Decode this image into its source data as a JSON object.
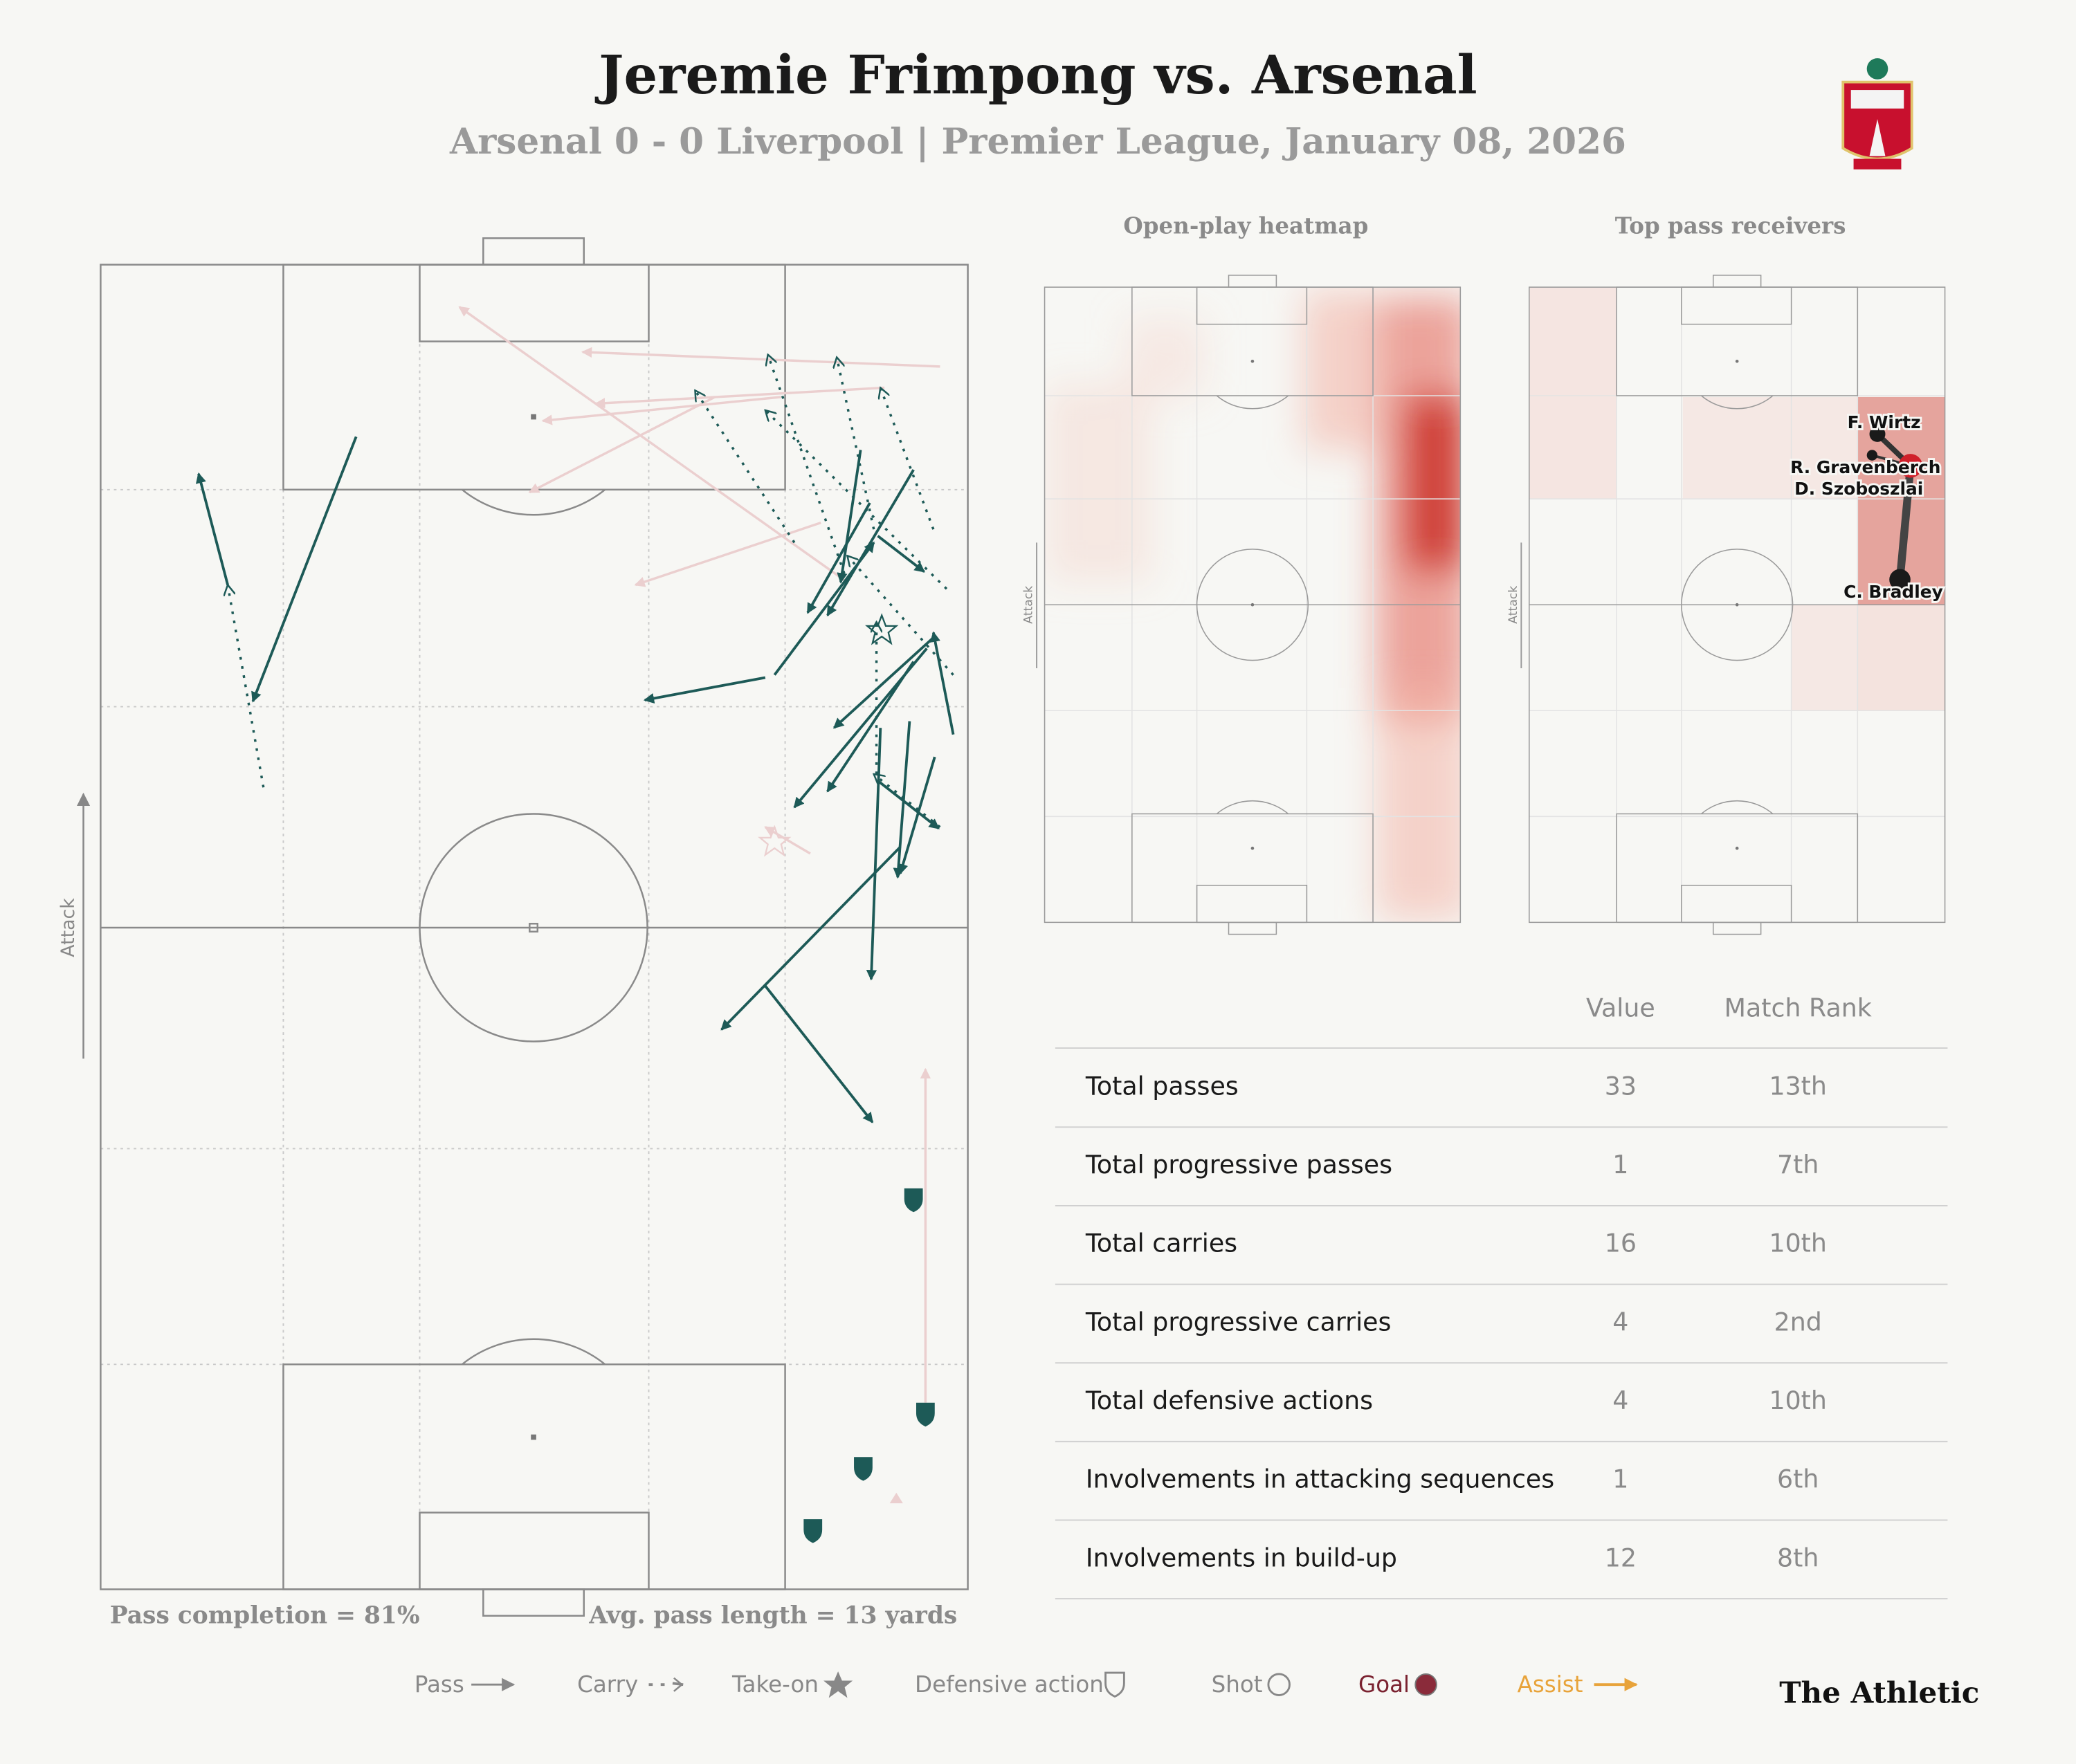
{
  "header": {
    "title": "Jeremie Frimpong vs. Arsenal",
    "subtitle": "Arsenal 0 - 0 Liverpool | Premier League, January 08, 2026"
  },
  "pitch": {
    "attack_label": "Attack",
    "pass_completion": "Pass completion = 81%",
    "avg_pass_length": "Avg. pass length = 13 yards"
  },
  "heatmap": {
    "title": "Open-play heatmap",
    "attack_label": "Attack"
  },
  "receivers": {
    "title": "Top pass receivers",
    "attack_label": "Attack",
    "players": [
      "F. Wirtz",
      "R. Gravenberch",
      "D. Szoboszlai",
      "C. Bradley"
    ]
  },
  "table": {
    "columns": [
      "Value",
      "Match Rank"
    ],
    "rows": [
      [
        "Total passes",
        33,
        "13th"
      ],
      [
        "Total progressive passes",
        1,
        "7th"
      ],
      [
        "Total carries",
        16,
        "10th"
      ],
      [
        "Total progressive carries",
        4,
        "2nd"
      ],
      [
        "Total defensive actions",
        4,
        "10th"
      ],
      [
        "Involvements in attacking sequences",
        1,
        "6th"
      ],
      [
        "Involvements in build-up",
        12,
        "8th"
      ]
    ]
  },
  "legend": [
    "Pass",
    "Carry",
    "Take-on",
    "Defensive action",
    "Shot",
    "Goal",
    "Assist"
  ],
  "footer": {
    "brand": "The Athletic"
  }
}
